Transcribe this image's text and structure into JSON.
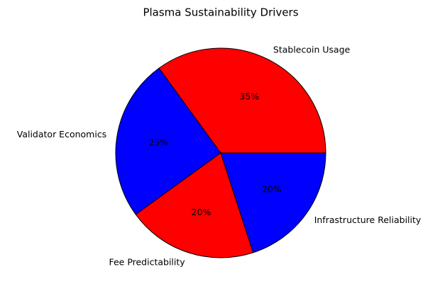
{
  "chart_data": {
    "type": "pie",
    "title": "Plasma Sustainability Drivers",
    "categories": [
      "Stablecoin Usage",
      "Validator Economics",
      "Fee Predictability",
      "Infrastructure Reliability"
    ],
    "values": [
      35,
      25,
      20,
      20
    ],
    "value_labels": [
      "35%",
      "25%",
      "20%",
      "20%"
    ],
    "colors": [
      "#ff0000",
      "#0000ff",
      "#ff0000",
      "#0000ff"
    ]
  }
}
